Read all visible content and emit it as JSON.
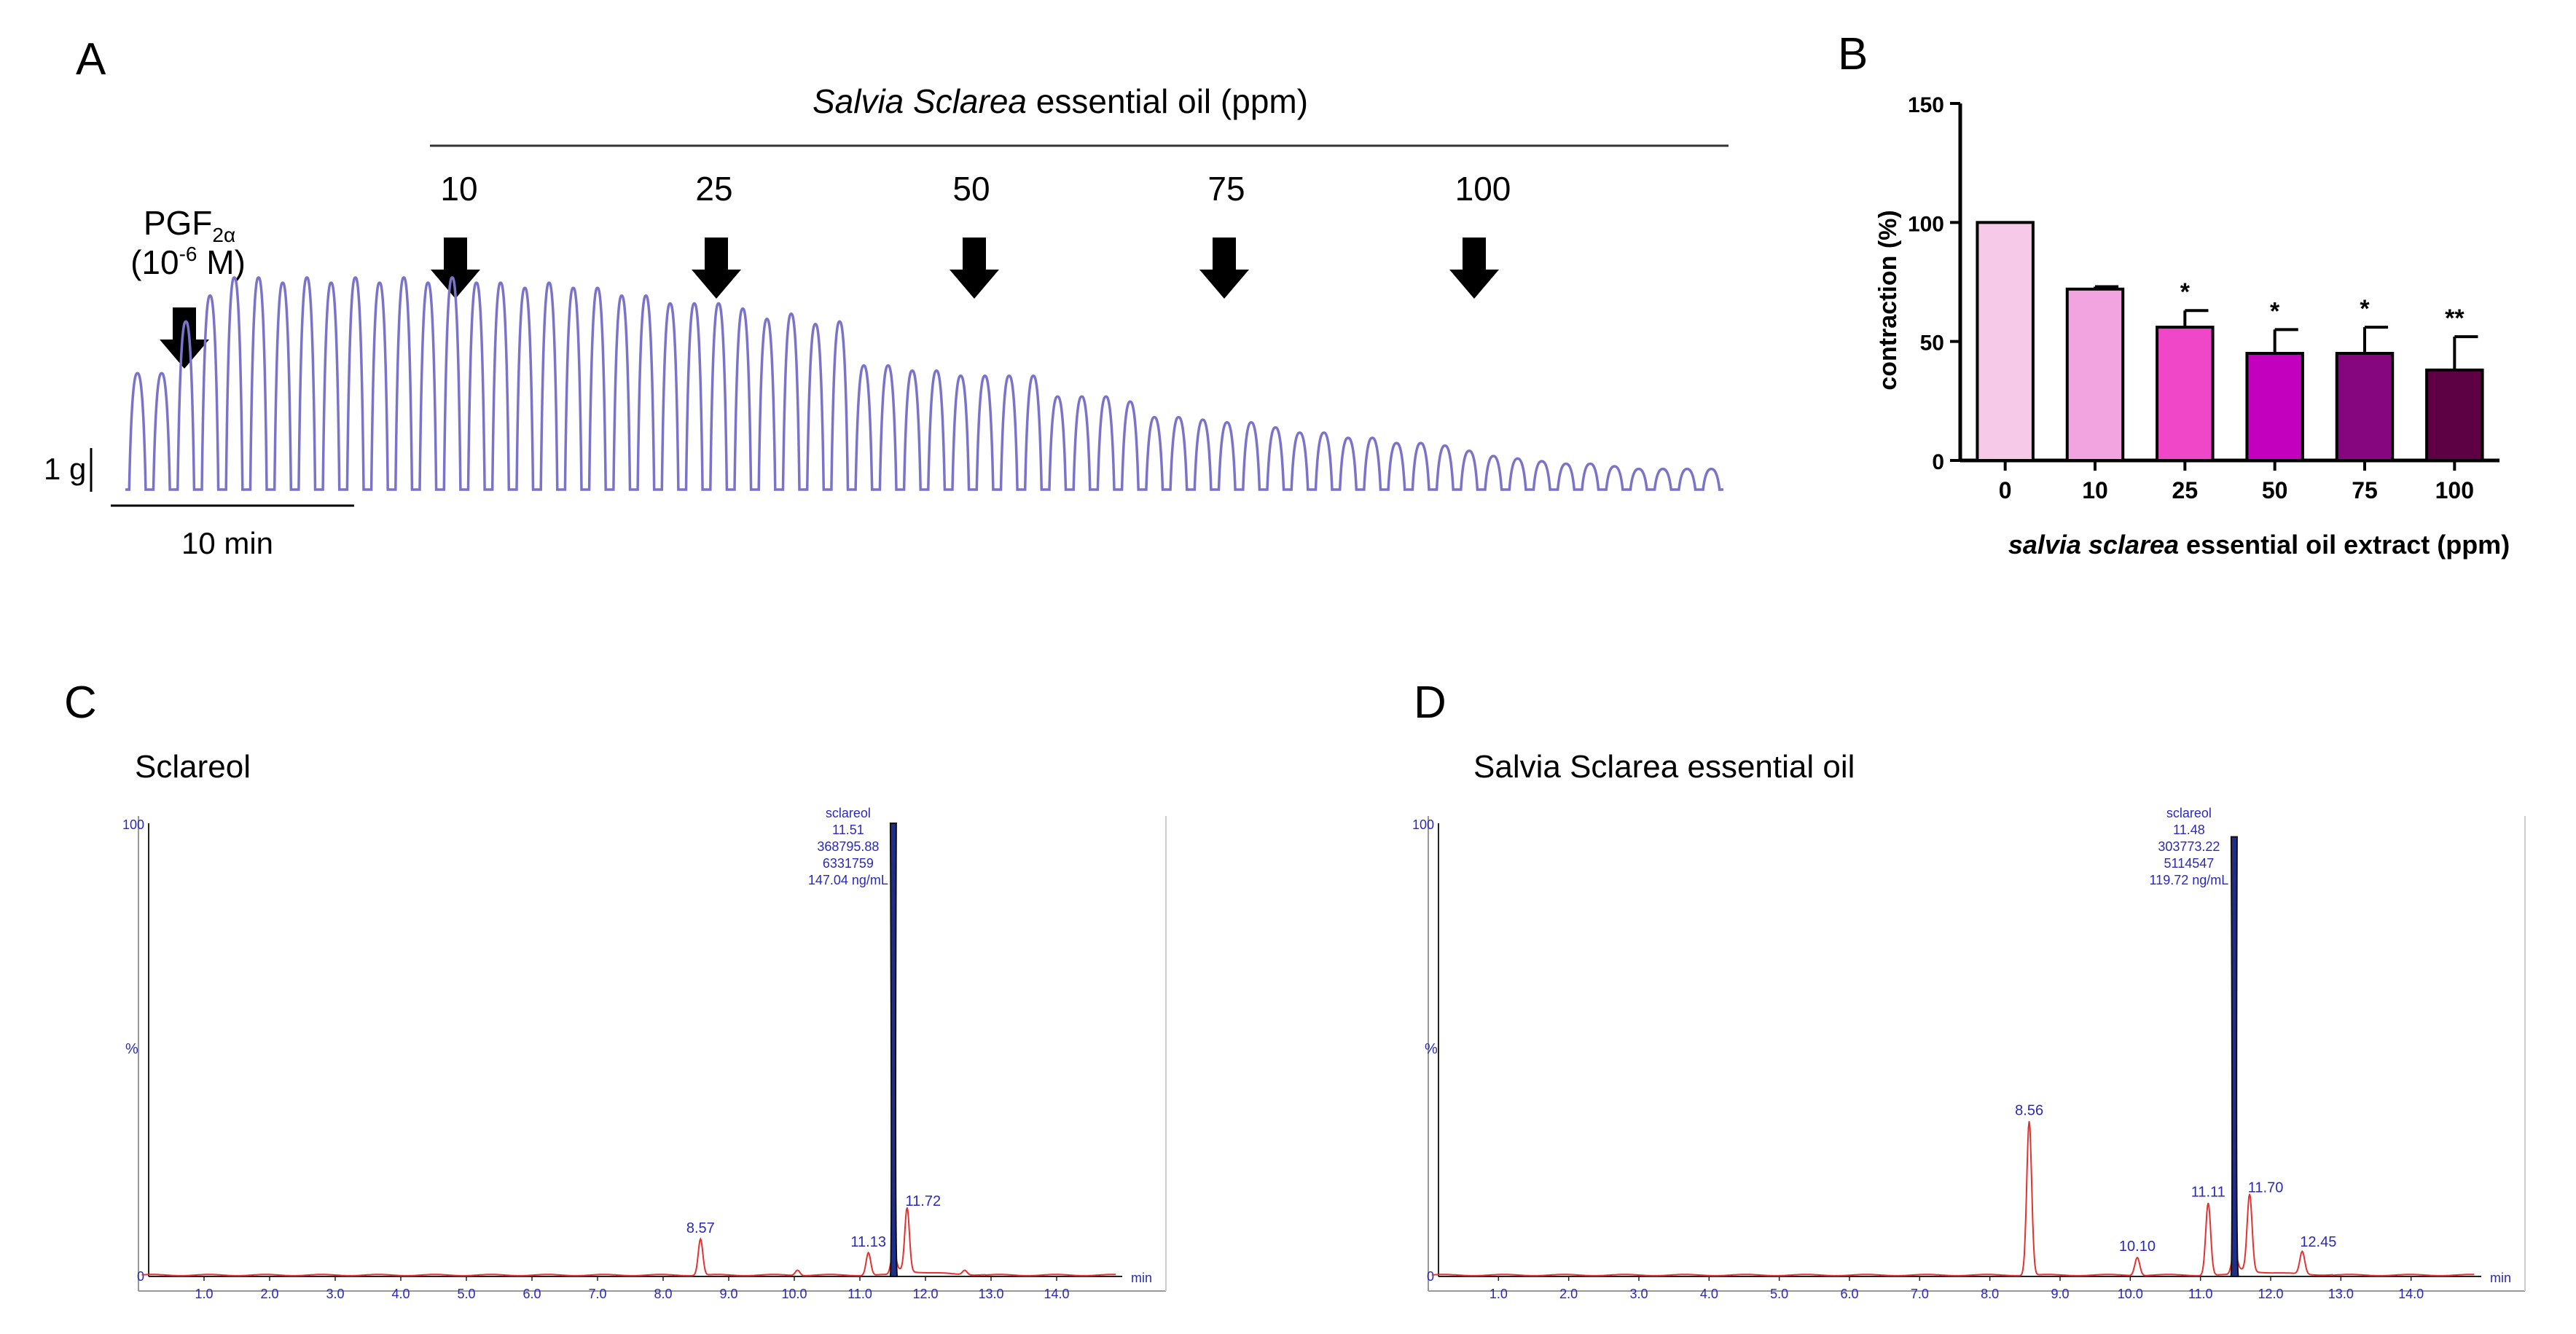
{
  "colors": {
    "trace": "#7a73c9",
    "chrom_red": "#e33232",
    "chrom_blue": "#2a2ab8",
    "peak_fill": "#1f2d8c",
    "axis_gray": "#8a8a8a",
    "bar_colors": [
      "#f6c9e8",
      "#f2a4e0",
      "#f046c8",
      "#c400bf",
      "#86067f",
      "#5e0044"
    ]
  },
  "panelA": {
    "letter": "A",
    "header_italic": "Salvia Sclarea",
    "header_rest": "essential oil (ppm)",
    "pgf_label": "PGF",
    "pgf_sub": "2α",
    "pgf_conc_pre": "(10",
    "pgf_conc_exp": "-6",
    "pgf_conc_post": " M)",
    "doses": [
      "10",
      "25",
      "50",
      "75",
      "100"
    ],
    "scale_y": "1 g",
    "scale_x": "10 min",
    "arrow_icon": "down-arrow-icon",
    "trace_amplitudes": [
      0.45,
      0.45,
      0.65,
      0.75,
      0.82,
      0.82,
      0.8,
      0.82,
      0.8,
      0.82,
      0.8,
      0.82,
      0.8,
      0.82,
      0.8,
      0.8,
      0.78,
      0.8,
      0.78,
      0.78,
      0.75,
      0.75,
      0.72,
      0.72,
      0.72,
      0.7,
      0.66,
      0.68,
      0.64,
      0.65,
      0.48,
      0.48,
      0.46,
      0.46,
      0.44,
      0.44,
      0.44,
      0.44,
      0.36,
      0.36,
      0.36,
      0.34,
      0.28,
      0.28,
      0.27,
      0.26,
      0.26,
      0.24,
      0.22,
      0.22,
      0.2,
      0.2,
      0.18,
      0.18,
      0.17,
      0.15,
      0.13,
      0.12,
      0.11,
      0.1,
      0.1,
      0.09,
      0.08,
      0.08,
      0.08,
      0.08
    ]
  },
  "panelB": {
    "letter": "B",
    "chart_data": {
      "type": "bar",
      "categories": [
        "0",
        "10",
        "25",
        "50",
        "75",
        "100"
      ],
      "values": [
        100,
        72,
        56,
        45,
        45,
        38
      ],
      "errors": [
        0,
        1,
        7,
        10,
        11,
        14
      ],
      "significance": [
        "",
        "",
        "*",
        "*",
        "*",
        "**"
      ],
      "ylabel": "contraction (%)",
      "xlabel_italic": "salvia sclarea",
      "xlabel_rest": "essential oil extract (ppm)",
      "yticks": [
        0,
        50,
        100,
        150
      ],
      "ylim": [
        0,
        150
      ]
    }
  },
  "panelC": {
    "letter": "C",
    "title": "Sclareol",
    "annotation": [
      "sclareol",
      "11.51",
      "368795.88",
      "6331759",
      "147.04 ng/mL"
    ],
    "percent_label": "%",
    "chart_data": {
      "type": "line",
      "xlabel": "min",
      "xlim": [
        0,
        15
      ],
      "ylim": [
        0,
        100
      ],
      "yticks": [
        "0",
        "100"
      ],
      "xticks": [
        "1.0",
        "2.0",
        "3.0",
        "4.0",
        "5.0",
        "6.0",
        "7.0",
        "8.0",
        "9.0",
        "10.0",
        "11.0",
        "12.0",
        "13.0",
        "14.0"
      ],
      "main_peak": {
        "rt": 11.51,
        "height": 100
      },
      "peaks": [
        {
          "rt": 8.57,
          "height": 8,
          "label": "8.57"
        },
        {
          "rt": 10.05,
          "height": 1.2,
          "label": ""
        },
        {
          "rt": 11.13,
          "height": 5,
          "label": "11.13"
        },
        {
          "rt": 11.72,
          "height": 14,
          "label": "11.72"
        },
        {
          "rt": 12.6,
          "height": 1,
          "label": ""
        }
      ]
    }
  },
  "panelD": {
    "letter": "D",
    "title": "Salvia  Sclarea  essential  oil",
    "annotation": [
      "sclareol",
      "11.48",
      "303773.22",
      "5114547",
      "119.72 ng/mL"
    ],
    "percent_label": "%",
    "chart_data": {
      "type": "line",
      "xlabel": "min",
      "xlim": [
        0,
        15
      ],
      "ylim": [
        0,
        100
      ],
      "yticks": [
        "0",
        "100"
      ],
      "xticks": [
        "1.0",
        "2.0",
        "3.0",
        "4.0",
        "5.0",
        "6.0",
        "7.0",
        "8.0",
        "9.0",
        "10.0",
        "11.0",
        "12.0",
        "13.0",
        "14.0"
      ],
      "main_peak": {
        "rt": 11.48,
        "height": 97
      },
      "peaks": [
        {
          "rt": 8.56,
          "height": 34,
          "label": "8.56"
        },
        {
          "rt": 10.1,
          "height": 4,
          "label": "10.10"
        },
        {
          "rt": 11.11,
          "height": 16,
          "label": "11.11"
        },
        {
          "rt": 11.7,
          "height": 17,
          "label": "11.70"
        },
        {
          "rt": 12.45,
          "height": 5,
          "label": "12.45"
        }
      ]
    }
  }
}
